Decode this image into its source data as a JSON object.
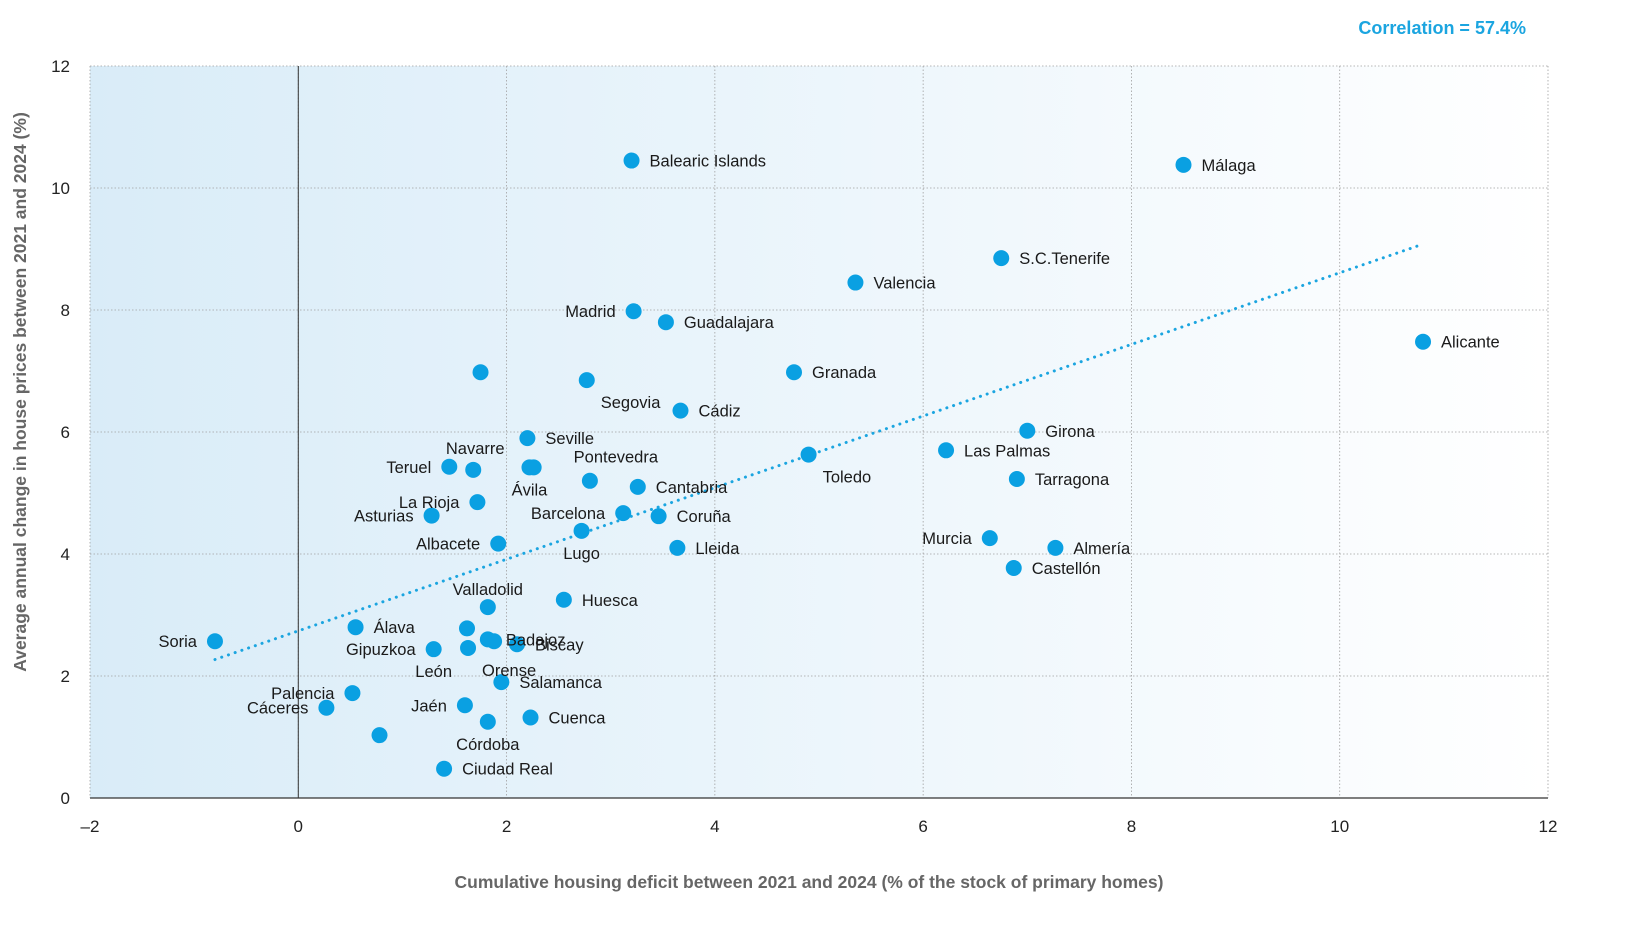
{
  "chart_data": {
    "type": "scatter",
    "title": "",
    "annotation": "Correlation = 57.4%",
    "xlabel": "Cumulative housing deficit between 2021 and 2024 (% of the stock of primary homes)",
    "ylabel": "Average annual change in house prices between 2021 and 2024 (%)",
    "xlim": [
      -2,
      12
    ],
    "ylim": [
      0,
      12
    ],
    "xticks": [
      -2,
      0,
      2,
      4,
      6,
      8,
      10,
      12
    ],
    "yticks": [
      0,
      2,
      4,
      6,
      8,
      10,
      12
    ],
    "xtick_labels": [
      "–2",
      "0",
      "2",
      "4",
      "6",
      "8",
      "10",
      "12"
    ],
    "ytick_labels": [
      "0",
      "2",
      "4",
      "6",
      "8",
      "10",
      "12"
    ],
    "grid": true,
    "colors": {
      "point": "#0aa0e2",
      "trend": "#1ba5e0",
      "shade_left": "#d9ecf8",
      "shade_right": "#ffffff",
      "grid": "#a0a0a0",
      "axis": "#333333"
    },
    "trendline": {
      "x": [
        -0.8,
        10.8
      ],
      "y": [
        2.27,
        9.08
      ],
      "style": "dotted"
    },
    "points": [
      {
        "name": "Balearic Islands",
        "x": 3.2,
        "y": 10.45,
        "label_pos": "right"
      },
      {
        "name": "Málaga",
        "x": 8.5,
        "y": 10.38,
        "label_pos": "right"
      },
      {
        "name": "S.C.Tenerife",
        "x": 6.75,
        "y": 8.85,
        "label_pos": "right"
      },
      {
        "name": "Valencia",
        "x": 5.35,
        "y": 8.45,
        "label_pos": "right"
      },
      {
        "name": "Madrid",
        "x": 3.22,
        "y": 7.98,
        "label_pos": "left"
      },
      {
        "name": "Guadalajara",
        "x": 3.53,
        "y": 7.8,
        "label_pos": "right"
      },
      {
        "name": "Alicante",
        "x": 10.8,
        "y": 7.48,
        "label_pos": "right"
      },
      {
        "name": "",
        "x": 1.75,
        "y": 6.98,
        "label_pos": "none"
      },
      {
        "name": "Granada",
        "x": 4.76,
        "y": 6.98,
        "label_pos": "right"
      },
      {
        "name": "Segovia",
        "x": 2.77,
        "y": 6.85,
        "label_pos": "below-right"
      },
      {
        "name": "Cádiz",
        "x": 3.67,
        "y": 6.35,
        "label_pos": "right"
      },
      {
        "name": "Girona",
        "x": 7.0,
        "y": 6.02,
        "label_pos": "right"
      },
      {
        "name": "Seville",
        "x": 2.2,
        "y": 5.9,
        "label_pos": "right"
      },
      {
        "name": "Las Palmas",
        "x": 6.22,
        "y": 5.7,
        "label_pos": "right"
      },
      {
        "name": "Toledo",
        "x": 4.9,
        "y": 5.63,
        "label_pos": "below-right"
      },
      {
        "name": "Teruel",
        "x": 1.45,
        "y": 5.43,
        "label_pos": "left"
      },
      {
        "name": "Navarre",
        "x": 1.68,
        "y": 5.38,
        "label_pos": "above-left"
      },
      {
        "name": "Pontevedra",
        "x": 2.26,
        "y": 5.42,
        "label_pos": "above-right"
      },
      {
        "name": "Tarragona",
        "x": 6.9,
        "y": 5.23,
        "label_pos": "right"
      },
      {
        "name": "",
        "x": 2.8,
        "y": 5.2,
        "label_pos": "none"
      },
      {
        "name": "Cantabria",
        "x": 3.26,
        "y": 5.1,
        "label_pos": "right"
      },
      {
        "name": "La Rioja",
        "x": 1.72,
        "y": 4.85,
        "label_pos": "left"
      },
      {
        "name": "Ávila",
        "x": 2.22,
        "y": 5.42,
        "label_pos": "below"
      },
      {
        "name": "Barcelona",
        "x": 3.12,
        "y": 4.67,
        "label_pos": "left"
      },
      {
        "name": "Asturias",
        "x": 1.28,
        "y": 4.63,
        "label_pos": "left"
      },
      {
        "name": "Coruña",
        "x": 3.46,
        "y": 4.62,
        "label_pos": "right"
      },
      {
        "name": "Lugo",
        "x": 2.72,
        "y": 4.38,
        "label_pos": "below"
      },
      {
        "name": "Murcia",
        "x": 6.64,
        "y": 4.26,
        "label_pos": "left"
      },
      {
        "name": "Albacete",
        "x": 1.92,
        "y": 4.17,
        "label_pos": "left"
      },
      {
        "name": "Lleida",
        "x": 3.64,
        "y": 4.1,
        "label_pos": "right"
      },
      {
        "name": "Almería",
        "x": 7.27,
        "y": 4.1,
        "label_pos": "right"
      },
      {
        "name": "Castellón",
        "x": 6.87,
        "y": 3.77,
        "label_pos": "right"
      },
      {
        "name": "Huesca",
        "x": 2.55,
        "y": 3.25,
        "label_pos": "right"
      },
      {
        "name": "Valladolid",
        "x": 1.82,
        "y": 3.13,
        "label_pos": "above"
      },
      {
        "name": "Álava",
        "x": 0.55,
        "y": 2.8,
        "label_pos": "right"
      },
      {
        "name": "",
        "x": 1.62,
        "y": 2.78,
        "label_pos": "none"
      },
      {
        "name": "Badajoz",
        "x": 1.82,
        "y": 2.6,
        "label_pos": "right"
      },
      {
        "name": "Soria",
        "x": -0.8,
        "y": 2.57,
        "label_pos": "left"
      },
      {
        "name": "",
        "x": 1.88,
        "y": 2.57,
        "label_pos": "none"
      },
      {
        "name": "Biscay",
        "x": 2.1,
        "y": 2.52,
        "label_pos": "right"
      },
      {
        "name": "",
        "x": 1.63,
        "y": 2.46,
        "label_pos": "none"
      },
      {
        "name": "Gipuzkoa",
        "x": 1.3,
        "y": 2.44,
        "label_pos": "left"
      },
      {
        "name": "León",
        "x": 1.3,
        "y": 2.44,
        "label_pos": "below"
      },
      {
        "name": "Orense",
        "x": 1.63,
        "y": 2.46,
        "label_pos": "below-right"
      },
      {
        "name": "Salamanca",
        "x": 1.95,
        "y": 1.9,
        "label_pos": "right"
      },
      {
        "name": "Palencia",
        "x": 0.52,
        "y": 1.72,
        "label_pos": "left"
      },
      {
        "name": "Jaén",
        "x": 1.6,
        "y": 1.52,
        "label_pos": "left"
      },
      {
        "name": "Cáceres",
        "x": 0.27,
        "y": 1.48,
        "label_pos": "left"
      },
      {
        "name": "Cuenca",
        "x": 2.23,
        "y": 1.32,
        "label_pos": "right"
      },
      {
        "name": "",
        "x": 1.82,
        "y": 1.25,
        "label_pos": "none"
      },
      {
        "name": "Córdoba",
        "x": 1.82,
        "y": 1.25,
        "label_pos": "below"
      },
      {
        "name": "",
        "x": 0.78,
        "y": 1.03,
        "label_pos": "none"
      },
      {
        "name": "Ciudad Real",
        "x": 1.4,
        "y": 0.48,
        "label_pos": "right"
      }
    ]
  }
}
